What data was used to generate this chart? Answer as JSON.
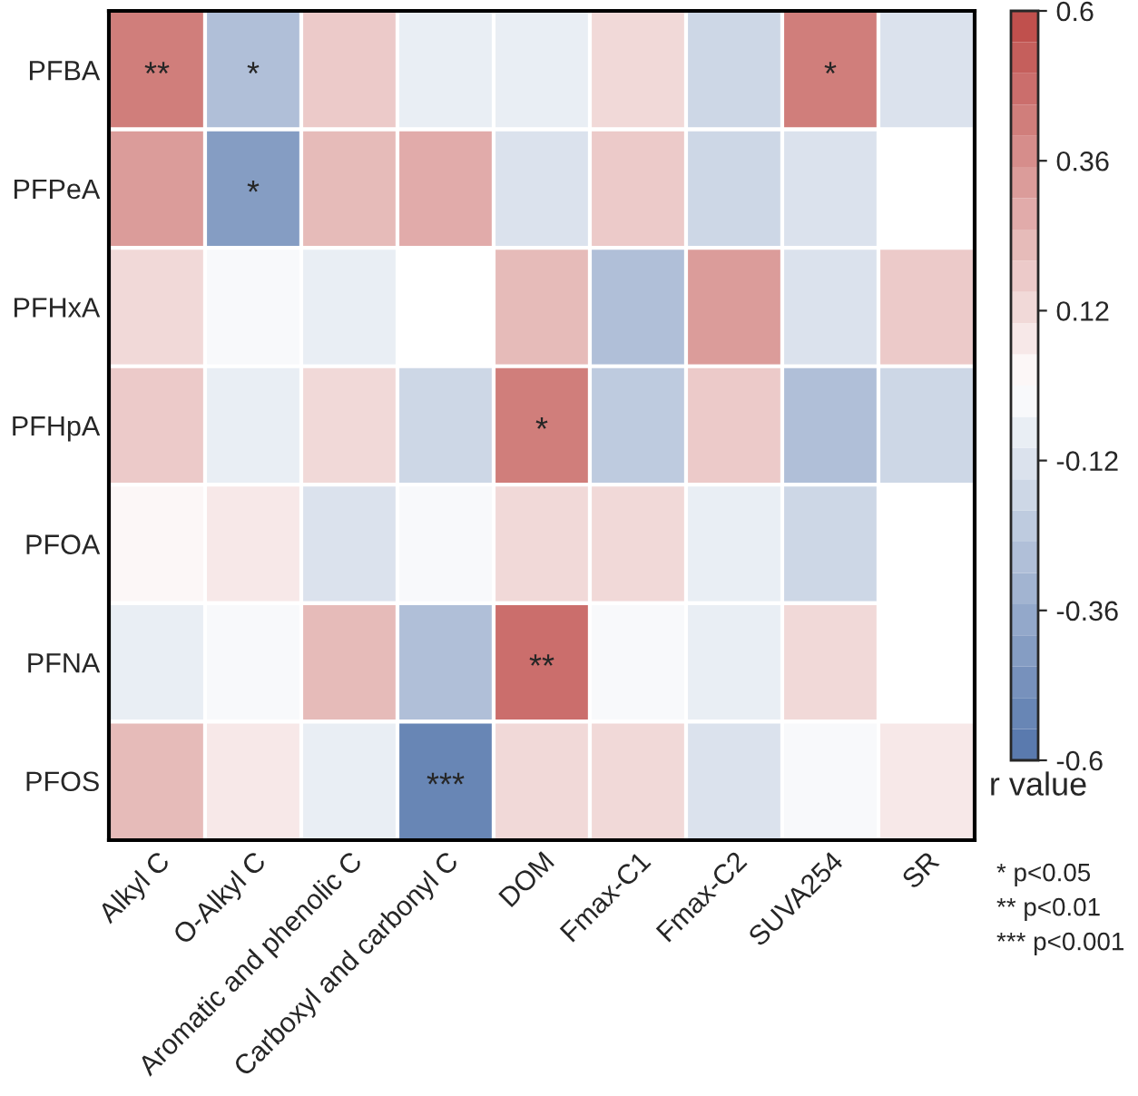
{
  "chart_data": {
    "type": "heatmap",
    "categories": [
      "Alkyl C",
      "O-Alkyl C",
      "Aromatic and phenolic C",
      "Carboxyl and carbonyl C",
      "DOM",
      "Fmax-C1",
      "Fmax-C2",
      "SUVA254",
      "SR"
    ],
    "y_categories": [
      "PFBA",
      "PFPeA",
      "PFHxA",
      "PFHpA",
      "PFOA",
      "PFNA",
      "PFOS"
    ],
    "cells": [
      [
        0.42,
        -0.3,
        0.17,
        -0.06,
        -0.06,
        0.1,
        -0.18,
        0.42,
        -0.14
      ],
      [
        0.32,
        -0.42,
        0.2,
        0.25,
        -0.15,
        0.18,
        -0.18,
        -0.14,
        null
      ],
      [
        0.1,
        -0.03,
        -0.07,
        null,
        0.22,
        -0.27,
        0.3,
        -0.14,
        0.18
      ],
      [
        0.18,
        -0.1,
        0.1,
        -0.18,
        0.4,
        -0.22,
        0.17,
        -0.27,
        -0.2
      ],
      [
        0.04,
        0.05,
        -0.15,
        -0.04,
        0.1,
        0.14,
        -0.07,
        -0.2,
        null
      ],
      [
        -0.08,
        -0.03,
        0.24,
        -0.27,
        0.45,
        -0.03,
        -0.1,
        0.1,
        null
      ],
      [
        0.24,
        0.05,
        -0.1,
        -0.5,
        0.12,
        0.14,
        -0.14,
        -0.04,
        0.05
      ]
    ],
    "cell_labels": [
      [
        "**",
        "*",
        null,
        null,
        null,
        null,
        null,
        "*",
        null
      ],
      [
        null,
        "*",
        null,
        null,
        null,
        null,
        null,
        null,
        null
      ],
      [
        null,
        null,
        null,
        null,
        null,
        null,
        null,
        null,
        null
      ],
      [
        null,
        null,
        null,
        null,
        "*",
        null,
        null,
        null,
        null
      ],
      [
        null,
        null,
        null,
        null,
        null,
        null,
        null,
        null,
        null
      ],
      [
        null,
        null,
        null,
        null,
        "**",
        null,
        null,
        null,
        null
      ],
      [
        null,
        null,
        null,
        "***",
        null,
        null,
        null,
        null,
        null
      ]
    ],
    "clim": [
      -0.6,
      0.6
    ],
    "cticks": [
      -0.6,
      -0.36,
      -0.12,
      0.12,
      0.36,
      0.6
    ],
    "clabel": "r value",
    "annotations": [
      "* p<0.05",
      "** p<0.01",
      "*** p<0.001"
    ]
  }
}
